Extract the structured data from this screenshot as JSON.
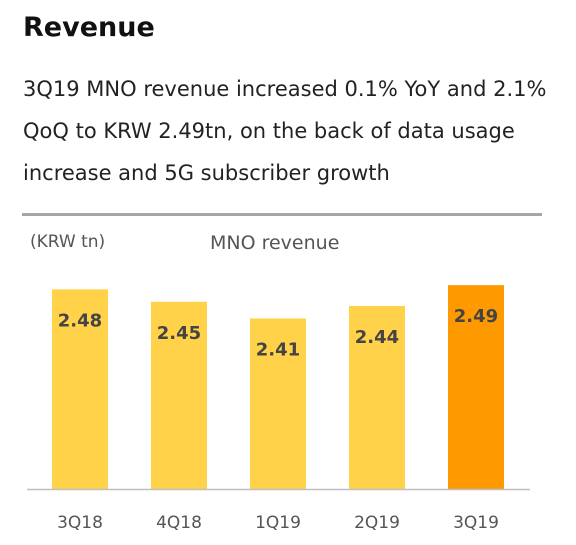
{
  "header": {
    "title": "Revenue",
    "description": "3Q19 MNO revenue increased 0.1% YoY and 2.1% QoQ to KRW 2.49tn, on the back of data usage increase and 5G subscriber growth"
  },
  "chart_data": {
    "type": "bar",
    "title": "MNO revenue",
    "unit_label": "(KRW tn)",
    "categories": [
      "3Q18",
      "4Q18",
      "1Q19",
      "2Q19",
      "3Q19"
    ],
    "values": [
      2.48,
      2.45,
      2.41,
      2.44,
      2.49
    ],
    "value_labels": [
      "2.48",
      "2.45",
      "2.41",
      "2.44",
      "2.49"
    ],
    "ylim": [
      2.0,
      2.5
    ],
    "grid": false,
    "legend": "none",
    "colors": {
      "bar": "#FFD24A",
      "highlight_bar": "#FF9900",
      "baseline": "#bfbfbf",
      "label": "#444444",
      "tick": "#555555"
    },
    "highlight_index": 4
  }
}
